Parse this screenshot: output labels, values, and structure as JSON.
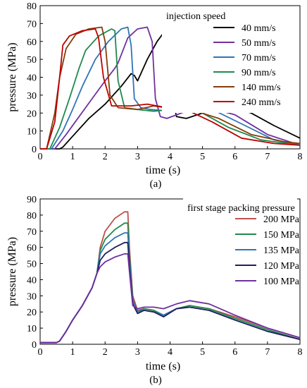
{
  "chart_data": [
    {
      "type": "line",
      "panel_label": "(a)",
      "legend_title": "injection speed",
      "legend_position": "top-right",
      "xlabel": "time (s)",
      "ylabel": "pressure (MPa)",
      "xlim": [
        0,
        8
      ],
      "ylim": [
        0,
        80
      ],
      "xticks": [
        "0",
        "1",
        "2",
        "3",
        "4",
        "5",
        "6",
        "7",
        "8"
      ],
      "yticks": [
        "0",
        "10",
        "20",
        "30",
        "40",
        "50",
        "60",
        "70",
        "80"
      ],
      "grid": false,
      "series": [
        {
          "name": "40 mm/s",
          "color": "#000000",
          "x": [
            0,
            0.6,
            0.7,
            1.0,
            1.5,
            2.0,
            2.5,
            2.8,
            2.9,
            3.0,
            3.3,
            3.6,
            3.85,
            3.95,
            4.05,
            4.2,
            4.5,
            5.0,
            5.5,
            5.8,
            6.5,
            7.2,
            8.0
          ],
          "y": [
            0,
            0,
            1,
            7,
            17,
            25,
            35,
            42,
            41,
            38,
            50,
            60,
            66,
            65,
            30,
            18,
            17,
            20,
            24,
            24,
            20,
            13,
            6
          ]
        },
        {
          "name": "50 mm/s",
          "color": "#7030a0",
          "x": [
            0,
            0.45,
            0.8,
            1.2,
            1.6,
            2.0,
            2.3,
            2.4,
            2.7,
            3.0,
            3.3,
            3.45,
            3.55,
            3.7,
            3.9,
            4.5,
            5.2,
            6.0,
            7.0,
            8.0
          ],
          "y": [
            0,
            0,
            8,
            18,
            28,
            38,
            45,
            48,
            62,
            67,
            68,
            60,
            28,
            18,
            17,
            21,
            23,
            19,
            8,
            2
          ]
        },
        {
          "name": "70 mm/s",
          "color": "#2e75b6",
          "x": [
            0,
            0.35,
            0.7,
            1.0,
            1.3,
            1.7,
            2.1,
            2.5,
            2.7,
            2.8,
            2.9,
            3.1,
            3.4,
            4.0,
            4.6,
            5.3,
            6.2,
            7.2,
            8.0
          ],
          "y": [
            0,
            0,
            10,
            22,
            35,
            50,
            60,
            67,
            68,
            58,
            28,
            23,
            22,
            21,
            23,
            22,
            14,
            5,
            2
          ]
        },
        {
          "name": "90 mm/s",
          "color": "#1f8a4c",
          "x": [
            0,
            0.3,
            0.6,
            0.9,
            1.2,
            1.4,
            1.8,
            2.2,
            2.3,
            2.4,
            2.6,
            3.0,
            3.5,
            4.0,
            4.5,
            5.0,
            5.8,
            6.8,
            8.0
          ],
          "y": [
            0,
            0,
            12,
            28,
            45,
            55,
            63,
            67,
            66,
            38,
            23,
            22,
            21,
            22,
            22,
            20,
            12,
            5,
            2
          ]
        },
        {
          "name": "140 mm/s",
          "color": "#843c0c",
          "x": [
            0,
            0.2,
            0.45,
            0.6,
            0.8,
            1.1,
            1.5,
            1.9,
            2.0,
            2.15,
            2.4,
            3.0,
            3.5,
            4.2,
            4.8,
            5.5,
            6.5,
            7.5,
            8.0
          ],
          "y": [
            0,
            0,
            20,
            40,
            56,
            64,
            67,
            68,
            60,
            30,
            23,
            22,
            24,
            22,
            21,
            17,
            8,
            4,
            3
          ]
        },
        {
          "name": "240 mm/s",
          "color": "#c00000",
          "x": [
            0,
            0.2,
            0.45,
            0.6,
            0.7,
            0.9,
            1.3,
            1.7,
            1.8,
            1.95,
            2.2,
            2.8,
            3.3,
            3.9,
            4.6,
            5.3,
            6.2,
            7.2,
            8.0
          ],
          "y": [
            0,
            0,
            15,
            40,
            58,
            63,
            66,
            67,
            62,
            40,
            24,
            24,
            25,
            23,
            21,
            15,
            6,
            3,
            2
          ]
        }
      ]
    },
    {
      "type": "line",
      "panel_label": "(b)",
      "legend_title": "first stage packing pressure",
      "legend_position": "top-right",
      "xlabel": "time (s)",
      "ylabel": "pressure (MPa)",
      "xlim": [
        0,
        8
      ],
      "ylim": [
        0,
        90
      ],
      "xticks": [
        "0",
        "1",
        "2",
        "3",
        "4",
        "5",
        "6",
        "7",
        "8"
      ],
      "yticks": [
        "0",
        "10",
        "20",
        "30",
        "40",
        "50",
        "60",
        "70",
        "80",
        "90"
      ],
      "grid": false,
      "series": [
        {
          "name": "200 MPa",
          "color": "#c0504d",
          "x": [
            0,
            0.5,
            0.6,
            0.8,
            1.0,
            1.3,
            1.6,
            1.75,
            1.85,
            2.0,
            2.3,
            2.6,
            2.7,
            2.75,
            2.85,
            3.0,
            3.2,
            3.5,
            3.8,
            4.2,
            4.6,
            5.2,
            6.0,
            7.0,
            8.0
          ],
          "y": [
            1,
            1,
            2,
            8,
            15,
            24,
            35,
            44,
            60,
            70,
            78,
            82,
            82,
            60,
            30,
            21,
            22,
            21,
            18,
            22,
            24,
            22,
            17,
            10,
            4
          ]
        },
        {
          "name": "150 MPa",
          "color": "#1f8a4c",
          "x": [
            0,
            0.5,
            0.6,
            0.8,
            1.0,
            1.3,
            1.6,
            1.75,
            1.85,
            2.0,
            2.3,
            2.6,
            2.7,
            2.75,
            2.85,
            3.0,
            3.2,
            3.5,
            3.8,
            4.2,
            4.6,
            5.2,
            6.0,
            7.0,
            8.0
          ],
          "y": [
            1,
            1,
            2,
            8,
            15,
            24,
            35,
            44,
            58,
            65,
            71,
            75,
            75,
            55,
            28,
            20,
            22,
            21,
            18,
            22,
            24,
            22,
            16,
            9,
            3
          ]
        },
        {
          "name": "135 MPa",
          "color": "#2e75b6",
          "x": [
            0,
            0.5,
            0.6,
            0.8,
            1.0,
            1.3,
            1.6,
            1.75,
            1.85,
            2.0,
            2.3,
            2.6,
            2.7,
            2.75,
            2.85,
            3.0,
            3.2,
            3.5,
            3.8,
            4.2,
            4.6,
            5.2,
            6.0,
            7.0,
            8.0
          ],
          "y": [
            1,
            1,
            2,
            8,
            15,
            24,
            35,
            44,
            56,
            61,
            66,
            69,
            69,
            52,
            27,
            20,
            21,
            20,
            18,
            22,
            23,
            21,
            15,
            8,
            3
          ]
        },
        {
          "name": "120 MPa",
          "color": "#1f1f5c",
          "x": [
            0,
            0.5,
            0.6,
            0.8,
            1.0,
            1.3,
            1.6,
            1.75,
            1.85,
            2.0,
            2.3,
            2.6,
            2.7,
            2.75,
            2.85,
            3.0,
            3.2,
            3.5,
            3.8,
            4.2,
            4.6,
            5.2,
            6.0,
            7.0,
            8.0
          ],
          "y": [
            1,
            1,
            2,
            8,
            15,
            24,
            35,
            44,
            52,
            56,
            60,
            63,
            63,
            48,
            25,
            19,
            21,
            20,
            17,
            22,
            23,
            21,
            15,
            8,
            3
          ]
        },
        {
          "name": "100 MPa",
          "color": "#7030a0",
          "x": [
            0,
            0.5,
            0.6,
            0.8,
            1.0,
            1.3,
            1.6,
            1.75,
            1.85,
            2.0,
            2.3,
            2.6,
            2.7,
            2.75,
            2.85,
            3.0,
            3.2,
            3.5,
            3.8,
            4.2,
            4.6,
            5.2,
            6.0,
            7.0,
            8.0
          ],
          "y": [
            1,
            1,
            2,
            8,
            15,
            24,
            35,
            44,
            48,
            51,
            54,
            56,
            56,
            45,
            24,
            22,
            23,
            23,
            22,
            25,
            27,
            25,
            18,
            10,
            4
          ]
        }
      ]
    }
  ]
}
